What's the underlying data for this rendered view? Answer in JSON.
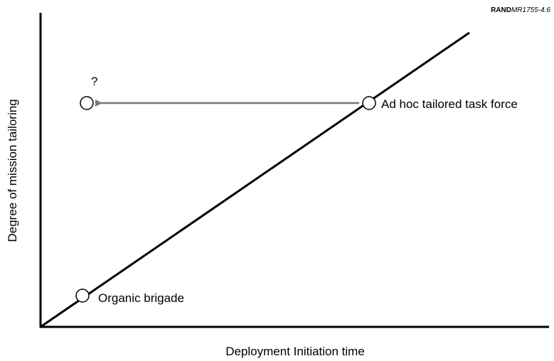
{
  "credit": {
    "org": "RAND",
    "id": "MR1755-4.6"
  },
  "axes": {
    "x_label": "Deployment Initiation time",
    "y_label": "Degree of mission tailoring"
  },
  "nodes": [
    {
      "label": "Organic brigade"
    },
    {
      "label": "Ad hoc tailored task force"
    },
    {
      "label": "?"
    }
  ]
}
